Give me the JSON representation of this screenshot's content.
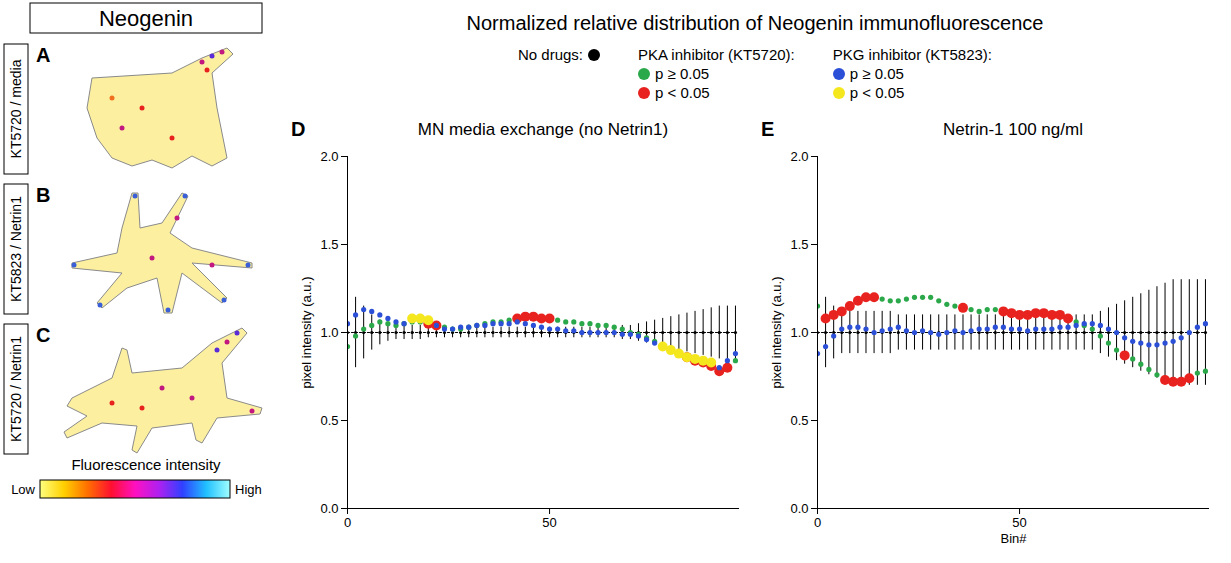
{
  "title": "Normalized relative distribution of Neogenin immunofluorescence",
  "legend": "top",
  "image_heading": "Neogenin",
  "images": [
    {
      "panel": "A",
      "label": "KT5720 / media"
    },
    {
      "panel": "B",
      "label": "KT5823 / Netrin1"
    },
    {
      "panel": "C",
      "label": "KT5720 / Netrin1"
    }
  ],
  "colorbar": {
    "title": "Fluorescence intensity",
    "low": "Low",
    "high": "High"
  },
  "chart_data": [
    {
      "type": "scatter",
      "panel": "D",
      "title": "MN media exchange (no Netrin1)",
      "ylabel": "pixel intensity (a.u.)",
      "xlim": [
        0,
        97
      ],
      "xticks": [
        0,
        50
      ],
      "ylim": [
        0,
        2
      ],
      "yticks": [
        {
          "value": 0,
          "label": "0.0"
        },
        {
          "value": 0.5,
          "label": "0.5"
        },
        {
          "value": 1,
          "label": "1.0"
        },
        {
          "value": 1.5,
          "label": "1.5"
        },
        {
          "value": 2,
          "label": "2.0"
        }
      ],
      "series": [
        {
          "name": "No drugs:",
          "color": "#000000",
          "type": "line",
          "line_style": "dotted",
          "marker": "small_circle",
          "x": [
            0,
            2,
            4,
            6,
            8,
            10,
            12,
            14,
            16,
            18,
            20,
            22,
            24,
            26,
            28,
            30,
            32,
            34,
            36,
            38,
            40,
            42,
            44,
            46,
            48,
            50,
            52,
            54,
            56,
            58,
            60,
            62,
            64,
            66,
            68,
            70,
            72,
            74,
            76,
            78,
            80,
            82,
            84,
            86,
            88,
            90,
            92,
            94,
            96
          ],
          "values": [
            1,
            1,
            1,
            1,
            1,
            1,
            1,
            1,
            1,
            1,
            1,
            1,
            1,
            1,
            1,
            1,
            1,
            1,
            1,
            1,
            1,
            1,
            1,
            1,
            1,
            1,
            1,
            1,
            1,
            1,
            1,
            1,
            1,
            1,
            1,
            1,
            1,
            1,
            1,
            1,
            1,
            1,
            1,
            1,
            1,
            1,
            1,
            1,
            1
          ],
          "error": [
            0.25,
            0.2,
            0.15,
            0.1,
            0.07,
            0.05,
            0.04,
            0.04,
            0.04,
            0.04,
            0.03,
            0.03,
            0.03,
            0.03,
            0.03,
            0.03,
            0.03,
            0.03,
            0.03,
            0.03,
            0.03,
            0.03,
            0.03,
            0.03,
            0.03,
            0.03,
            0.03,
            0.03,
            0.03,
            0.03,
            0.03,
            0.03,
            0.03,
            0.03,
            0.04,
            0.04,
            0.05,
            0.06,
            0.07,
            0.08,
            0.09,
            0.1,
            0.11,
            0.12,
            0.13,
            0.14,
            0.15,
            0.15,
            0.15
          ]
        },
        {
          "name": "p ≥ 0.05",
          "group": "PKA inhibitor (KT5720):",
          "color": "#2aa84a",
          "type": "scatter",
          "marker": "circle",
          "x": [
            0,
            2,
            4,
            6,
            8,
            10,
            12,
            14,
            16,
            18,
            24,
            26,
            28,
            30,
            32,
            34,
            36,
            38,
            40,
            52,
            54,
            56,
            58,
            60,
            62,
            64,
            66,
            68,
            70,
            72,
            74,
            76,
            78,
            80,
            82,
            96
          ],
          "values": [
            0.92,
            0.98,
            1.02,
            1.04,
            1.06,
            1.05,
            1.04,
            1.05,
            1.06,
            1.06,
            1.03,
            1.02,
            1.02,
            1.03,
            1.04,
            1.05,
            1.06,
            1.06,
            1.07,
            1.07,
            1.06,
            1.06,
            1.05,
            1.05,
            1.04,
            1.04,
            1.03,
            1.02,
            1.0,
            0.99,
            0.97,
            0.95,
            0.93,
            0.9,
            0.88,
            0.84
          ]
        },
        {
          "name": "p < 0.05",
          "group": "PKA inhibitor (KT5720):",
          "color": "#e8231f",
          "type": "scatter",
          "marker": "large_circle",
          "x": [
            20,
            22,
            42,
            44,
            46,
            48,
            50,
            84,
            86,
            88,
            90,
            92,
            94
          ],
          "values": [
            1.05,
            1.04,
            1.08,
            1.09,
            1.09,
            1.08,
            1.08,
            0.86,
            0.84,
            0.83,
            0.81,
            0.78,
            0.8
          ]
        },
        {
          "name": "p ≥ 0.05",
          "group": "PKG inhibitor (KT5823):",
          "color": "#2b4fd6",
          "type": "scatter",
          "marker": "circle",
          "x": [
            0,
            2,
            4,
            6,
            8,
            10,
            12,
            14,
            22,
            24,
            26,
            28,
            30,
            32,
            34,
            36,
            38,
            40,
            42,
            44,
            46,
            48,
            50,
            52,
            54,
            56,
            58,
            60,
            62,
            64,
            66,
            68,
            70,
            72,
            74,
            76,
            92,
            94,
            96
          ],
          "values": [
            1.05,
            1.1,
            1.13,
            1.12,
            1.1,
            1.08,
            1.06,
            1.05,
            1.04,
            1.02,
            1.02,
            1.03,
            1.03,
            1.04,
            1.04,
            1.05,
            1.05,
            1.05,
            1.06,
            1.05,
            1.04,
            1.03,
            1.02,
            1.02,
            1.01,
            1.01,
            1.0,
            1.0,
            1.0,
            1.0,
            1.0,
            0.99,
            0.99,
            0.98,
            0.96,
            0.94,
            0.8,
            0.84,
            0.88
          ]
        },
        {
          "name": "p < 0.05",
          "group": "PKG inhibitor (KT5823):",
          "color": "#f5e71e",
          "type": "scatter",
          "marker": "large_circle",
          "x": [
            16,
            18,
            20,
            78,
            80,
            82,
            84,
            86,
            88,
            90
          ],
          "values": [
            1.08,
            1.08,
            1.07,
            0.92,
            0.9,
            0.88,
            0.86,
            0.85,
            0.84,
            0.83
          ]
        }
      ]
    },
    {
      "type": "scatter",
      "panel": "E",
      "title": "Netrin-1 100 ng/ml",
      "ylabel": "pixel intensity (a.u.)",
      "xlabel": "Bin#",
      "xlim": [
        0,
        97
      ],
      "xticks": [
        0,
        50
      ],
      "ylim": [
        0,
        2
      ],
      "yticks": [
        {
          "value": 0,
          "label": "0.0"
        },
        {
          "value": 0.5,
          "label": "0.5"
        },
        {
          "value": 1,
          "label": "1.0"
        },
        {
          "value": 1.5,
          "label": "1.5"
        },
        {
          "value": 2,
          "label": "2.0"
        }
      ],
      "series": [
        {
          "name": "No drugs:",
          "color": "#000000",
          "type": "line",
          "line_style": "dotted",
          "marker": "small_circle",
          "x": [
            0,
            2,
            4,
            6,
            8,
            10,
            12,
            14,
            16,
            18,
            20,
            22,
            24,
            26,
            28,
            30,
            32,
            34,
            36,
            38,
            40,
            42,
            44,
            46,
            48,
            50,
            52,
            54,
            56,
            58,
            60,
            62,
            64,
            66,
            68,
            70,
            72,
            74,
            76,
            78,
            80,
            82,
            84,
            86,
            88,
            90,
            92,
            94,
            96
          ],
          "values": [
            1,
            1,
            1,
            1,
            1,
            1,
            1,
            1,
            1,
            1,
            1,
            1,
            1,
            1,
            1,
            1,
            1,
            1,
            1,
            1,
            1,
            1,
            1,
            1,
            1,
            1,
            1,
            1,
            1,
            1,
            1,
            1,
            1,
            1,
            1,
            1,
            1,
            1,
            1,
            1,
            1,
            1,
            1,
            1,
            1,
            1,
            1,
            1,
            1
          ],
          "error": [
            0.3,
            0.2,
            0.15,
            0.12,
            0.12,
            0.12,
            0.12,
            0.12,
            0.12,
            0.12,
            0.1,
            0.1,
            0.1,
            0.1,
            0.1,
            0.1,
            0.1,
            0.1,
            0.1,
            0.1,
            0.1,
            0.1,
            0.1,
            0.1,
            0.1,
            0.1,
            0.1,
            0.1,
            0.1,
            0.1,
            0.1,
            0.1,
            0.1,
            0.1,
            0.1,
            0.12,
            0.14,
            0.16,
            0.18,
            0.2,
            0.22,
            0.24,
            0.26,
            0.28,
            0.3,
            0.3,
            0.3,
            0.3,
            0.3
          ]
        },
        {
          "name": "p ≥ 0.05",
          "group": "PKA inhibitor (KT5720):",
          "color": "#2aa84a",
          "type": "scatter",
          "marker": "circle",
          "x": [
            0,
            16,
            18,
            20,
            22,
            24,
            26,
            28,
            30,
            32,
            34,
            38,
            40,
            42,
            44,
            64,
            66,
            68,
            70,
            72,
            74,
            78,
            80,
            82,
            84,
            94,
            96
          ],
          "values": [
            1.15,
            1.19,
            1.18,
            1.18,
            1.19,
            1.2,
            1.2,
            1.2,
            1.18,
            1.16,
            1.15,
            1.13,
            1.12,
            1.13,
            1.13,
            1.06,
            1.04,
            1.02,
            0.98,
            0.94,
            0.9,
            0.85,
            0.82,
            0.79,
            0.76,
            0.77,
            0.78
          ]
        },
        {
          "name": "p < 0.05",
          "group": "PKA inhibitor (KT5720):",
          "color": "#e8231f",
          "type": "scatter",
          "marker": "large_circle",
          "x": [
            2,
            4,
            6,
            8,
            10,
            12,
            14,
            36,
            46,
            48,
            50,
            52,
            54,
            56,
            58,
            60,
            62,
            76,
            86,
            88,
            90,
            92
          ],
          "values": [
            1.08,
            1.1,
            1.12,
            1.15,
            1.18,
            1.2,
            1.2,
            1.14,
            1.12,
            1.11,
            1.1,
            1.1,
            1.11,
            1.11,
            1.1,
            1.1,
            1.08,
            0.87,
            0.73,
            0.72,
            0.72,
            0.74
          ]
        },
        {
          "name": "p ≥ 0.05",
          "group": "PKG inhibitor (KT5823):",
          "color": "#2b4fd6",
          "type": "scatter",
          "marker": "circle",
          "x": [
            0,
            2,
            4,
            6,
            8,
            10,
            12,
            14,
            16,
            18,
            20,
            22,
            24,
            26,
            28,
            30,
            32,
            34,
            36,
            38,
            40,
            42,
            44,
            46,
            48,
            50,
            52,
            54,
            56,
            58,
            60,
            62,
            64,
            66,
            68,
            70,
            72,
            74,
            76,
            78,
            80,
            82,
            84,
            86,
            88,
            90,
            92,
            94,
            96
          ],
          "values": [
            0.88,
            0.92,
            0.98,
            1.02,
            1.03,
            1.03,
            1.02,
            1.0,
            1.01,
            1.02,
            1.03,
            1.01,
            1.0,
            1.01,
            1.0,
            0.99,
            1.0,
            1.01,
            1.0,
            1.01,
            1.02,
            1.02,
            1.03,
            1.03,
            1.02,
            1.02,
            1.01,
            1.02,
            1.02,
            1.02,
            1.03,
            1.03,
            1.04,
            1.05,
            1.05,
            1.04,
            1.02,
            1.0,
            0.97,
            0.95,
            0.94,
            0.93,
            0.93,
            0.94,
            0.95,
            0.97,
            1.0,
            1.03,
            1.05
          ]
        }
      ]
    }
  ]
}
